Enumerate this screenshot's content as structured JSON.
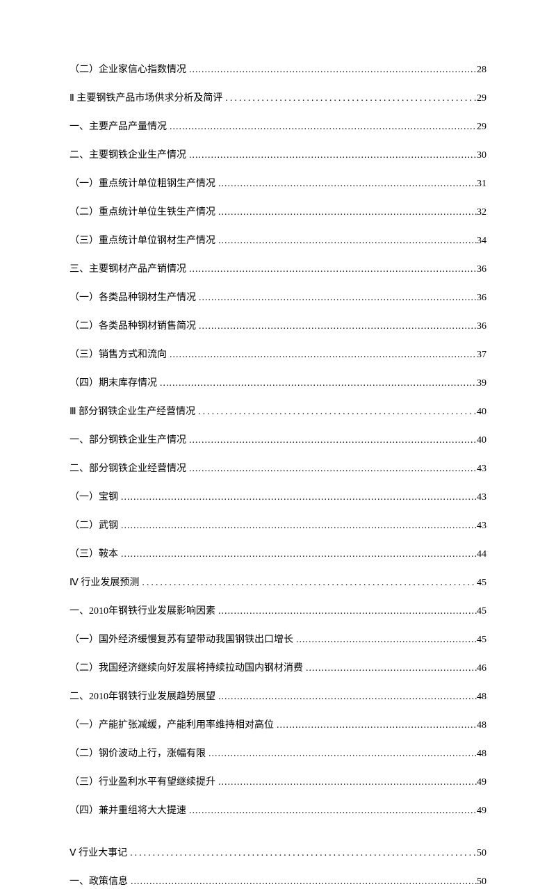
{
  "text_color": "#000000",
  "background_color": "#ffffff",
  "font_family": "SimSun",
  "font_size": 14,
  "line_spacing": 20,
  "entries": [
    {
      "title": "（二）企业家信心指数情况",
      "page": "28",
      "style": "tight",
      "class": ""
    },
    {
      "title": "Ⅱ  主要钢铁产品市场供求分析及简评",
      "page": "29",
      "style": "wide",
      "class": "section"
    },
    {
      "title": "一、主要产品产量情况",
      "page": "29",
      "style": "tight",
      "class": ""
    },
    {
      "title": "二、主要钢铁企业生产情况",
      "page": "30",
      "style": "tight",
      "class": ""
    },
    {
      "title": "（一）重点统计单位粗钢生产情况",
      "page": "31",
      "style": "tight",
      "class": ""
    },
    {
      "title": "（二）重点统计单位生铁生产情况",
      "page": "32",
      "style": "tight",
      "class": ""
    },
    {
      "title": "（三）重点统计单位钢材生产情况",
      "page": "34",
      "style": "tight",
      "class": ""
    },
    {
      "title": "三、主要钢材产品产销情况",
      "page": "36",
      "style": "tight",
      "class": ""
    },
    {
      "title": "（一）各类品种钢材生产情况",
      "page": "36",
      "style": "tight",
      "class": ""
    },
    {
      "title": "（二）各类品种钢材销售简况",
      "page": "36",
      "style": "tight",
      "class": ""
    },
    {
      "title": "（三）销售方式和流向",
      "page": "37",
      "style": "tight",
      "class": ""
    },
    {
      "title": "（四）期末库存情况",
      "page": "39",
      "style": "tight",
      "class": ""
    },
    {
      "title": "Ⅲ  部分钢铁企业生产经营情况",
      "page": "40",
      "style": "wide",
      "class": "section"
    },
    {
      "title": "一、部分钢铁企业生产情况",
      "page": "40",
      "style": "tight",
      "class": ""
    },
    {
      "title": "二、部分钢铁企业经营情况",
      "page": "43",
      "style": "tight",
      "class": ""
    },
    {
      "title": "（一）宝钢",
      "page": "43",
      "style": "tight",
      "class": ""
    },
    {
      "title": "（二）武钢",
      "page": "43",
      "style": "tight",
      "class": ""
    },
    {
      "title": "（三）鞍本",
      "page": "44",
      "style": "tight",
      "class": ""
    },
    {
      "title": "Ⅳ  行业发展预测",
      "page": "45",
      "style": "wide",
      "class": "section"
    },
    {
      "title": "一、2010年钢铁行业发展影响因素",
      "page": "45",
      "style": "tight",
      "class": ""
    },
    {
      "title": "（一）国外经济缓慢复苏有望带动我国钢铁出口增长",
      "page": "45",
      "style": "tight",
      "class": ""
    },
    {
      "title": "（二）我国经济继续向好发展将持续拉动国内钢材消费",
      "page": "46",
      "style": "tight",
      "class": ""
    },
    {
      "title": "二、2010年钢铁行业发展趋势展望",
      "page": "48",
      "style": "tight",
      "class": ""
    },
    {
      "title": "（一）产能扩张减缓，产能利用率维持相对高位",
      "page": "48",
      "style": "tight",
      "class": ""
    },
    {
      "title": "（二）钢价波动上行，涨幅有限",
      "page": "48",
      "style": "tight",
      "class": ""
    },
    {
      "title": "（三）行业盈利水平有望继续提升",
      "page": "49",
      "style": "tight",
      "class": ""
    },
    {
      "title": "（四）兼并重组将大大提速",
      "page": "49",
      "style": "tight",
      "class": ""
    },
    {
      "title": "Ⅴ  行业大事记",
      "page": "50",
      "style": "wide",
      "class": "extra-gap"
    },
    {
      "title": "一、政策信息",
      "page": "50",
      "style": "tight",
      "class": ""
    }
  ]
}
